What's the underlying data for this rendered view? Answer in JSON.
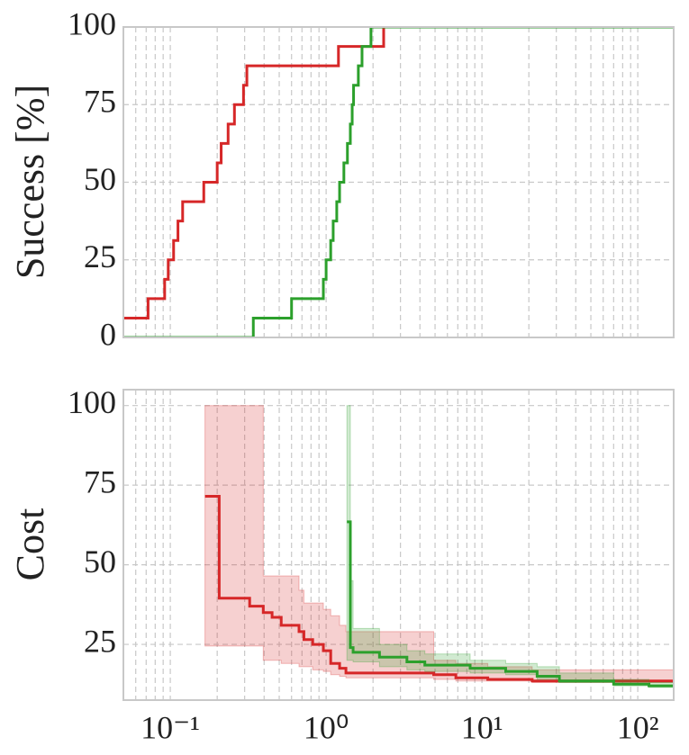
{
  "chart_data": [
    {
      "type": "step",
      "ylabel": "Success [%]",
      "sharex": true,
      "ylim": [
        0,
        100
      ],
      "yticks": [
        0,
        25,
        50,
        75,
        100
      ],
      "grid": true,
      "minor_grid": true,
      "series": [
        {
          "color": "#d62728",
          "x": [
            0.05,
            0.072,
            0.092,
            0.097,
            0.105,
            0.112,
            0.12,
            0.164,
            0.2,
            0.212,
            0.235,
            0.258,
            0.295,
            0.31,
            1.2,
            2.34
          ],
          "values": [
            6.25,
            12.5,
            18.75,
            25,
            31.25,
            37.5,
            43.75,
            50,
            56.25,
            62.5,
            68.75,
            75,
            81.25,
            87.5,
            93.75,
            100
          ]
        },
        {
          "color": "#2ca02c",
          "x": [
            0.05,
            0.341,
            0.6,
            0.96,
            1.0,
            1.07,
            1.11,
            1.17,
            1.22,
            1.3,
            1.37,
            1.43,
            1.47,
            1.5,
            1.61,
            1.7,
            1.94,
            2.05
          ],
          "values": [
            0,
            6.25,
            12.5,
            18.75,
            25,
            31.25,
            37.5,
            43.75,
            50,
            56.25,
            62.5,
            68.75,
            75,
            81.25,
            87.5,
            93.75,
            100,
            100
          ]
        }
      ]
    },
    {
      "type": "step",
      "ylabel": "Cost",
      "xscale": "log",
      "xlim": [
        0.05,
        170
      ],
      "xticks": [
        {
          "value": 0.1,
          "label": "10⁻¹"
        },
        {
          "value": 1,
          "label": "10⁰"
        },
        {
          "value": 10,
          "label": "10¹"
        },
        {
          "value": 100,
          "label": "10²"
        }
      ],
      "ylim": [
        7.5,
        105
      ],
      "yticks": [
        25,
        50,
        75,
        100
      ],
      "grid": true,
      "minor_grid": true,
      "series": [
        {
          "color": "#d62728",
          "x": [
            0.167,
            0.206,
            0.323,
            0.395,
            0.45,
            0.515,
            0.67,
            0.72,
            0.82,
            0.96,
            1.07,
            1.22,
            1.34,
            4.9,
            6.8,
            10.9,
            21
          ],
          "values": [
            71.5,
            39.5,
            37,
            35,
            33.5,
            31,
            29,
            26.5,
            25,
            23,
            19,
            17.5,
            16,
            15.5,
            14.5,
            14,
            13.5
          ],
          "upper": [
            100,
            100,
            100,
            46.5,
            46.5,
            46.5,
            42,
            38,
            38,
            36,
            34,
            31,
            29,
            20,
            19,
            18,
            17
          ],
          "lower": [
            24.5,
            24.5,
            24.5,
            20,
            20,
            19,
            18,
            18,
            17,
            16.5,
            15.5,
            15,
            14.5,
            14,
            13.5,
            13.5,
            13
          ]
        },
        {
          "color": "#2ca02c",
          "x": [
            1.36,
            1.43,
            1.49,
            2.2,
            3.3,
            4.3,
            8.4,
            14.2,
            22.6,
            31.4,
            70,
            118
          ],
          "values": [
            63.5,
            24,
            22.5,
            21,
            19.5,
            18.5,
            17.5,
            16.5,
            15,
            13.5,
            12.5,
            12
          ],
          "upper": [
            100,
            45,
            30,
            25,
            23,
            22,
            20,
            19,
            18,
            16,
            14,
            13
          ],
          "lower": [
            20,
            20,
            19.5,
            18,
            17,
            16.5,
            16,
            15.5,
            14,
            13,
            12,
            11.5
          ]
        }
      ]
    }
  ]
}
